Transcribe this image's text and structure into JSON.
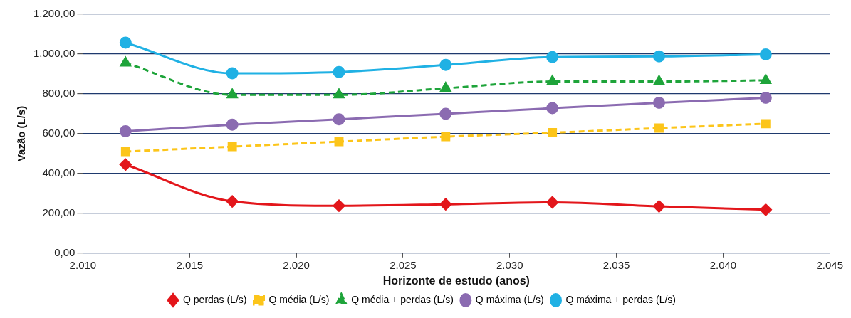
{
  "chart_data": {
    "type": "line",
    "xlabel": "Horizonte de estudo (anos)",
    "ylabel": "Vazão (L/s)",
    "x": [
      2012,
      2017,
      2022,
      2027,
      2032,
      2037,
      2042
    ],
    "xlim": [
      2010,
      2045
    ],
    "xticks": [
      {
        "value": 2010,
        "label": "2.010"
      },
      {
        "value": 2015,
        "label": "2.015"
      },
      {
        "value": 2020,
        "label": "2.020"
      },
      {
        "value": 2025,
        "label": "2.025"
      },
      {
        "value": 2030,
        "label": "2.030"
      },
      {
        "value": 2035,
        "label": "2.035"
      },
      {
        "value": 2040,
        "label": "2.040"
      },
      {
        "value": 2045,
        "label": "2.045"
      }
    ],
    "ylim": [
      0,
      1200
    ],
    "yticks": [
      {
        "value": 0,
        "label": "0,00"
      },
      {
        "value": 200,
        "label": "200,00"
      },
      {
        "value": 400,
        "label": "400,00"
      },
      {
        "value": 600,
        "label": "600,00"
      },
      {
        "value": 800,
        "label": "800,00"
      },
      {
        "value": 1000,
        "label": "1.000,00"
      },
      {
        "value": 1200,
        "label": "1.200,00"
      }
    ],
    "grid": "y",
    "legend": "bottom",
    "series": [
      {
        "name": "Q perdas (L/s)",
        "color": "#e3161b",
        "marker": "diamond",
        "line_style": "solid",
        "values": [
          445,
          260,
          238,
          245,
          255,
          235,
          218
        ]
      },
      {
        "name": "Q média (L/s)",
        "color": "#fcc51a",
        "marker": "square",
        "line_style": "dashed",
        "values": [
          510,
          535,
          560,
          585,
          605,
          628,
          650
        ]
      },
      {
        "name": "Q média + perdas (L/s)",
        "color": "#1ea43a",
        "marker": "triangle",
        "line_style": "dashed",
        "values": [
          955,
          795,
          795,
          828,
          862,
          862,
          868
        ]
      },
      {
        "name": "Q máxima (L/s)",
        "color": "#8b6bb1",
        "marker": "circle",
        "line_style": "solid",
        "values": [
          612,
          645,
          672,
          700,
          728,
          755,
          780
        ]
      },
      {
        "name": "Q máxima + perdas (L/s)",
        "color": "#20b1e4",
        "marker": "circle",
        "line_style": "solid",
        "values": [
          1057,
          903,
          910,
          945,
          985,
          988,
          998
        ]
      }
    ]
  }
}
